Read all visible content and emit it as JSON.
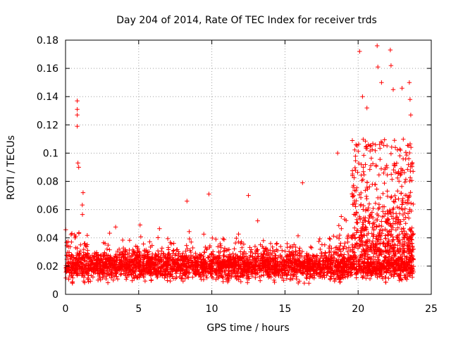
{
  "chart_data": {
    "type": "scatter",
    "title": "Day 204 of 2014, Rate Of TEC Index for receiver trds",
    "xlabel": "GPS time / hours",
    "ylabel": "ROTI / TECUs",
    "xlim": [
      0,
      25
    ],
    "ylim": [
      0,
      0.18
    ],
    "grid": true,
    "marker": "plus",
    "color": "#ff0000",
    "x_ticks": [
      0,
      5,
      10,
      15,
      20,
      25
    ],
    "x_tick_labels": [
      "0",
      "5",
      "10",
      "15",
      "20",
      "25"
    ],
    "y_ticks": [
      0,
      0.02,
      0.04,
      0.06,
      0.08,
      0.1,
      0.12,
      0.14,
      0.16,
      0.18
    ],
    "y_tick_labels": [
      "0",
      "0.02",
      "0.04",
      "0.06",
      "0.08",
      "0.1",
      "0.12",
      "0.14",
      "0.16",
      "0.18"
    ],
    "notable_points": [
      {
        "x": 0.8,
        "y": 0.137
      },
      {
        "x": 0.8,
        "y": 0.131
      },
      {
        "x": 0.8,
        "y": 0.127
      },
      {
        "x": 0.8,
        "y": 0.119
      },
      {
        "x": 0.85,
        "y": 0.093
      },
      {
        "x": 0.9,
        "y": 0.09
      },
      {
        "x": 1.2,
        "y": 0.072
      },
      {
        "x": 8.3,
        "y": 0.066
      },
      {
        "x": 9.8,
        "y": 0.071
      },
      {
        "x": 12.5,
        "y": 0.07
      },
      {
        "x": 16.2,
        "y": 0.079
      },
      {
        "x": 18.6,
        "y": 0.1
      },
      {
        "x": 19.6,
        "y": 0.071
      },
      {
        "x": 20.1,
        "y": 0.172
      },
      {
        "x": 20.3,
        "y": 0.14
      },
      {
        "x": 20.6,
        "y": 0.132
      },
      {
        "x": 21.3,
        "y": 0.176
      },
      {
        "x": 21.35,
        "y": 0.161
      },
      {
        "x": 21.6,
        "y": 0.15
      },
      {
        "x": 22.2,
        "y": 0.173
      },
      {
        "x": 22.25,
        "y": 0.162
      },
      {
        "x": 22.4,
        "y": 0.145
      },
      {
        "x": 23.0,
        "y": 0.146
      },
      {
        "x": 23.5,
        "y": 0.15
      },
      {
        "x": 23.55,
        "y": 0.138
      },
      {
        "x": 23.6,
        "y": 0.127
      }
    ],
    "bulk_band": {
      "x_range": [
        0,
        23.8
      ],
      "y_range": [
        0.005,
        0.045
      ],
      "typical_median": 0.02
    }
  }
}
